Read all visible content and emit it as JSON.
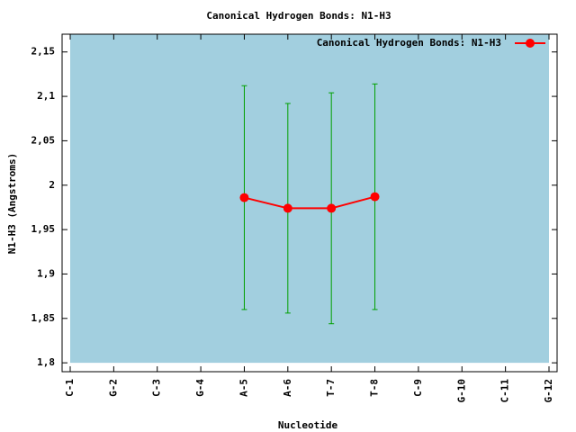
{
  "chart_data": {
    "type": "line",
    "title": "Canonical Hydrogen Bonds: N1-H3",
    "x_label": "Nucleotide",
    "y_label": "N1-H3 (Angstroms)",
    "categories": [
      "C-1",
      "G-2",
      "C-3",
      "G-4",
      "A-5",
      "A-6",
      "T-7",
      "T-8",
      "C-9",
      "G-10",
      "C-11",
      "G-12"
    ],
    "series": [
      {
        "name": "Canonical Hydrogen Bonds: N1-H3",
        "color": "#ff0000",
        "error_color": "#00a000",
        "values": [
          null,
          null,
          null,
          null,
          1.986,
          1.974,
          1.974,
          1.987,
          null,
          null,
          null,
          null
        ],
        "errors": [
          null,
          null,
          null,
          null,
          0.126,
          0.118,
          0.13,
          0.127,
          null,
          null,
          null,
          null
        ]
      }
    ],
    "ylim": [
      1.79,
      2.17
    ],
    "yticks": [
      {
        "value": 1.8,
        "label": "1,8"
      },
      {
        "value": 1.85,
        "label": "1,85"
      },
      {
        "value": 1.9,
        "label": "1,9"
      },
      {
        "value": 1.95,
        "label": "1,95"
      },
      2,
      {
        "value": 2.05,
        "label": "2,05"
      },
      {
        "value": 2.1,
        "label": "2,1"
      },
      {
        "value": 2.15,
        "label": "2,15"
      }
    ],
    "background": "#a2cfdf",
    "grid": false,
    "legend": "top-right"
  }
}
